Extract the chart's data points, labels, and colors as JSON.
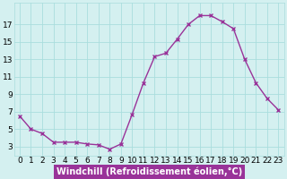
{
  "x": [
    0,
    1,
    2,
    3,
    4,
    5,
    6,
    7,
    8,
    9,
    10,
    11,
    12,
    13,
    14,
    15,
    16,
    17,
    18,
    19,
    20,
    21,
    22,
    23
  ],
  "y": [
    6.5,
    5.0,
    4.5,
    3.5,
    3.5,
    3.5,
    3.3,
    3.2,
    2.7,
    3.3,
    6.7,
    10.3,
    13.3,
    13.7,
    15.3,
    17.0,
    18.0,
    18.0,
    17.3,
    16.5,
    13.0,
    10.3,
    8.5,
    7.2
  ],
  "line_color": "#993399",
  "marker": "x",
  "bg_color": "#d4f0f0",
  "grid_color": "#aadddd",
  "xlabel": "Windchill (Refroidissement éolien,°C)",
  "xlabel_bg": "#993399",
  "xlabel_fg": "#ffffff",
  "yticks": [
    3,
    5,
    7,
    9,
    11,
    13,
    15,
    17
  ],
  "xticks": [
    0,
    1,
    2,
    3,
    4,
    5,
    6,
    7,
    8,
    9,
    10,
    11,
    12,
    13,
    14,
    15,
    16,
    17,
    18,
    19,
    20,
    21,
    22,
    23
  ],
  "ylim": [
    2.0,
    19.5
  ],
  "xlim": [
    -0.5,
    23.5
  ],
  "xlabel_fontsize": 7.0,
  "tick_fontsize": 6.5,
  "line_width": 1.0,
  "marker_size": 3.5
}
